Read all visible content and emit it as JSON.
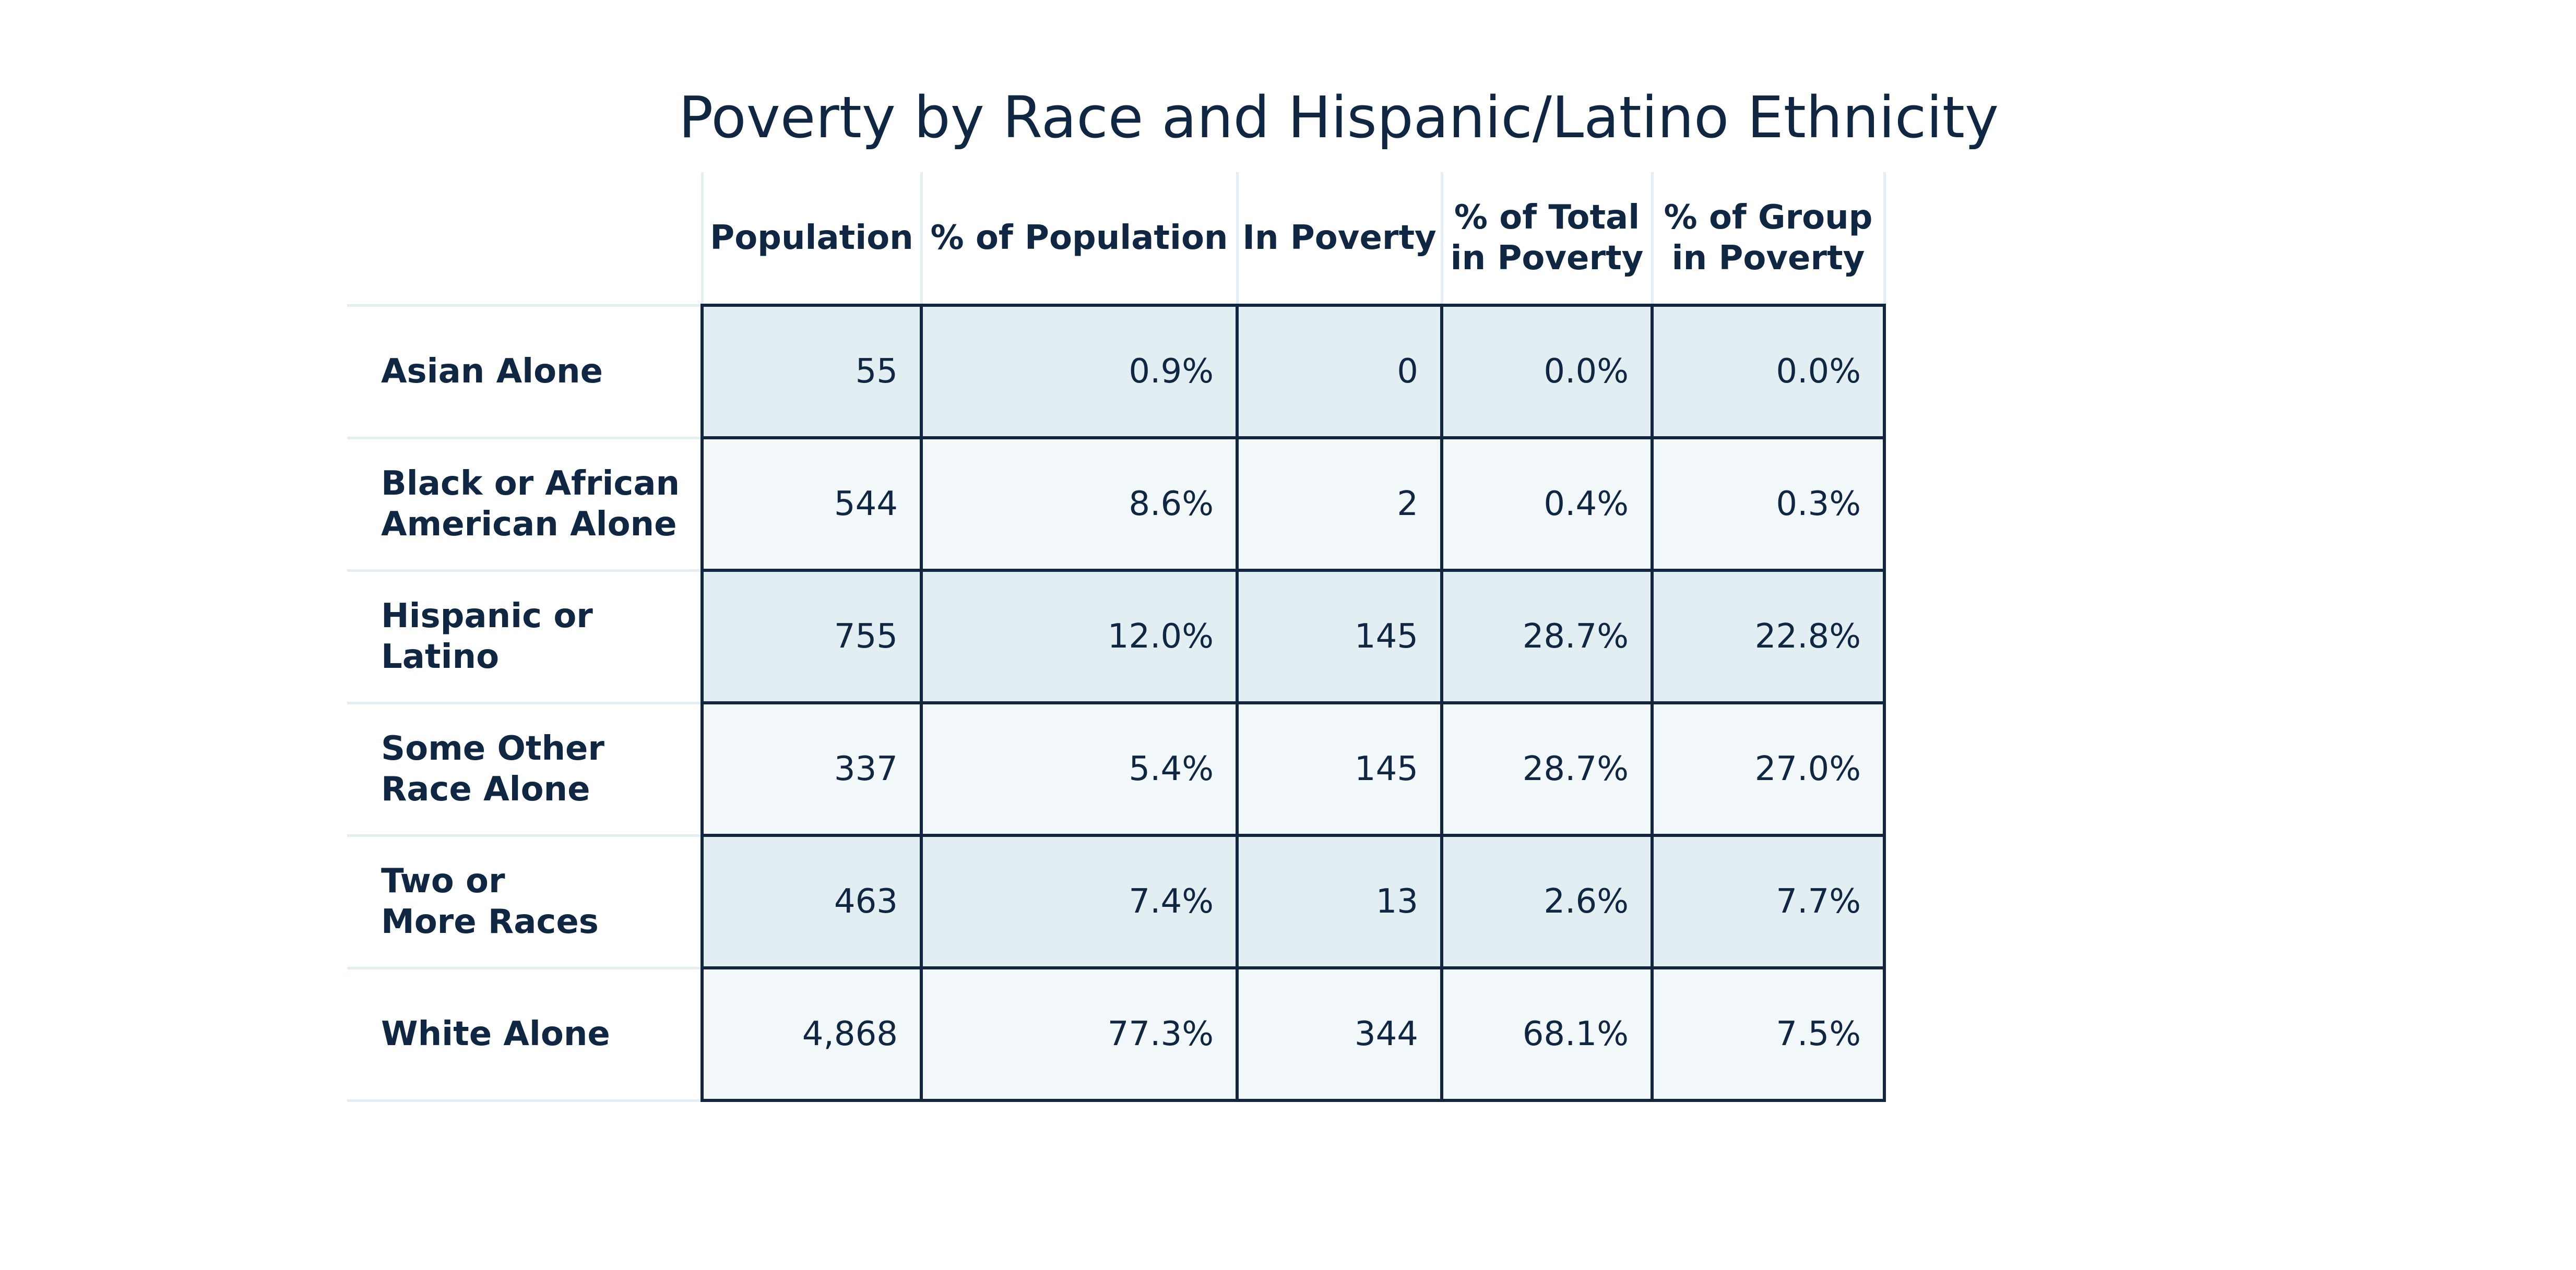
{
  "chart_data": {
    "type": "table",
    "title": "Poverty by Race and Hispanic/Latino Ethnicity",
    "columns": [
      {
        "key": "population",
        "label_lines": [
          "Population"
        ]
      },
      {
        "key": "pct_population",
        "label_lines": [
          "% of Population"
        ]
      },
      {
        "key": "in_poverty",
        "label_lines": [
          "In Poverty"
        ]
      },
      {
        "key": "pct_total_poverty",
        "label_lines": [
          "% of Total",
          "in Poverty"
        ]
      },
      {
        "key": "pct_group_poverty",
        "label_lines": [
          "% of Group",
          "in Poverty"
        ]
      }
    ],
    "rows": [
      {
        "label": "Asian Alone",
        "population": "55",
        "pct_population": "0.9%",
        "in_poverty": "0",
        "pct_total_poverty": "0.0%",
        "pct_group_poverty": "0.0%"
      },
      {
        "label": "Black or African\nAmerican Alone",
        "population": "544",
        "pct_population": "8.6%",
        "in_poverty": "2",
        "pct_total_poverty": "0.4%",
        "pct_group_poverty": "0.3%"
      },
      {
        "label": "Hispanic or Latino",
        "population": "755",
        "pct_population": "12.0%",
        "in_poverty": "145",
        "pct_total_poverty": "28.7%",
        "pct_group_poverty": "22.8%"
      },
      {
        "label": "Some Other\nRace Alone",
        "population": "337",
        "pct_population": "5.4%",
        "in_poverty": "145",
        "pct_total_poverty": "28.7%",
        "pct_group_poverty": "27.0%"
      },
      {
        "label": "Two or\nMore Races",
        "population": "463",
        "pct_population": "7.4%",
        "in_poverty": "13",
        "pct_total_poverty": "2.6%",
        "pct_group_poverty": "7.7%"
      },
      {
        "label": "White Alone",
        "population": "4,868",
        "pct_population": "77.3%",
        "in_poverty": "344",
        "pct_total_poverty": "68.1%",
        "pct_group_poverty": "7.5%"
      }
    ],
    "colors": {
      "text": "#0f2742",
      "row_shaded": "#e2eef2",
      "row_light": "#f2f8f9",
      "cell_border": "#12263f",
      "rule": "#e2eef2"
    }
  }
}
